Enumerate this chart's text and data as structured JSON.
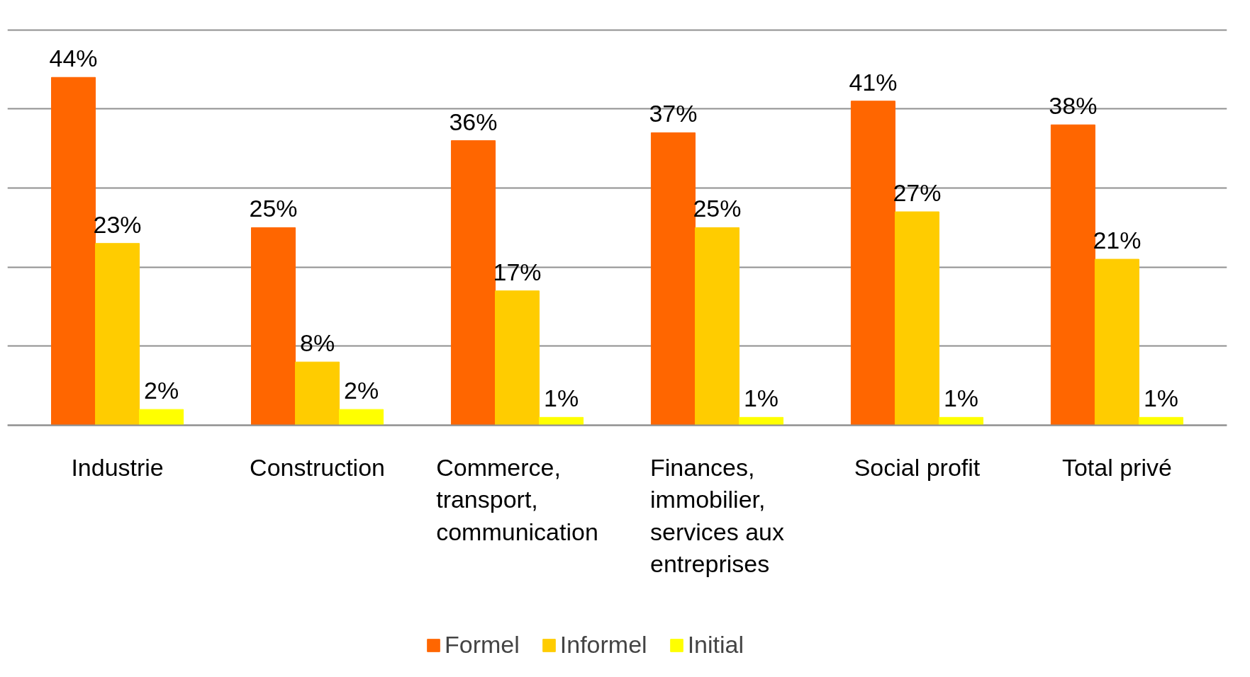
{
  "chart_data": {
    "type": "bar",
    "categories": [
      "Industrie",
      "Construction",
      "Commerce, transport, communication",
      "Finances, immobilier, services aux entreprises",
      "Social profit",
      "Total privé"
    ],
    "series": [
      {
        "name": "Formel",
        "color": "#ff6600",
        "values": [
          44,
          25,
          36,
          37,
          41,
          38
        ],
        "value_labels": [
          "44%",
          "25%",
          "36%",
          "37%",
          "41%",
          "38%"
        ]
      },
      {
        "name": "Informel",
        "color": "#ffcc00",
        "values": [
          23,
          8,
          17,
          25,
          27,
          21
        ],
        "value_labels": [
          "23%",
          "8%",
          "17%",
          "25%",
          "27%",
          "21%"
        ]
      },
      {
        "name": "Initial",
        "color": "#ffff00",
        "values": [
          2,
          2,
          1,
          1,
          1,
          1
        ],
        "value_labels": [
          "2%",
          "2%",
          "1%",
          "1%",
          "1%",
          "1%"
        ]
      }
    ],
    "grid": "y",
    "tick_labels": "x",
    "legend": "bottom"
  }
}
